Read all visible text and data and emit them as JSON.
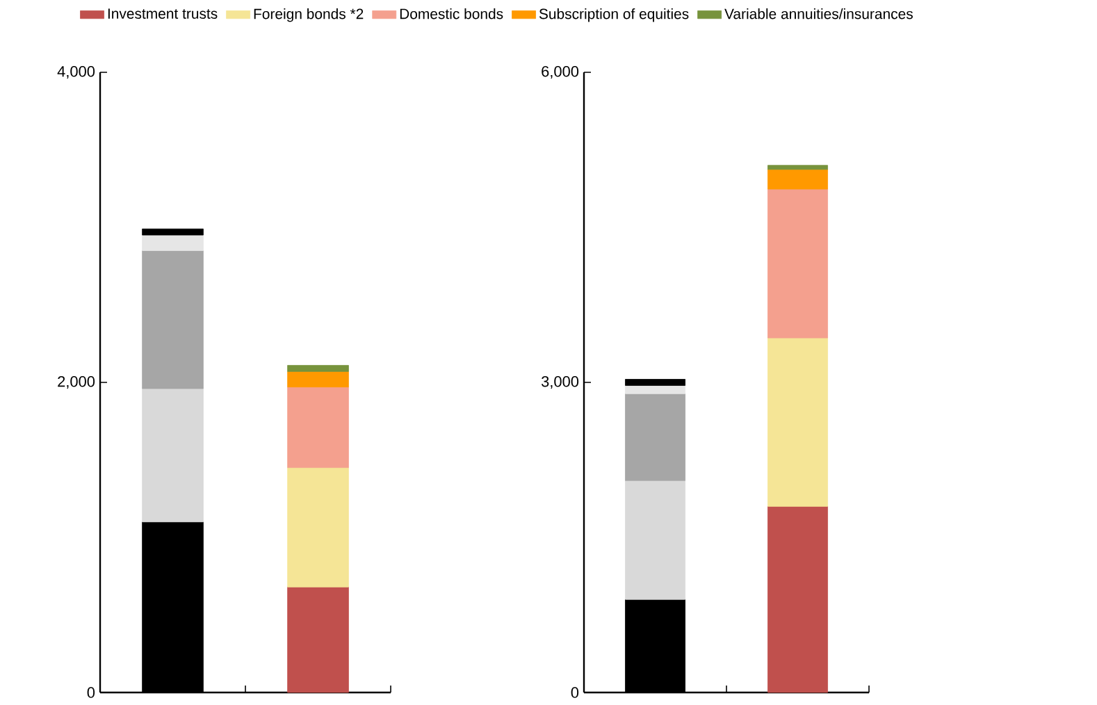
{
  "chart_data": [
    {
      "type": "bar",
      "stacked": true,
      "categories": [
        null,
        null
      ],
      "ylim": [
        0,
        4000
      ],
      "yticks": [
        0,
        {
          "value": 2000,
          "label": "2,000"
        },
        {
          "value": 4000,
          "label": "4,000"
        }
      ],
      "legend": "top",
      "series": [
        {
          "name": "Investment trusts",
          "color": "#c0504d",
          "colors": [
            "#000000",
            "#c0504d"
          ],
          "values": [
            1100,
            680
          ]
        },
        {
          "name": "Foreign bonds *2",
          "color": "#f5e596",
          "colors": [
            "#d9d9d9",
            "#f5e596"
          ],
          "values": [
            860,
            770
          ]
        },
        {
          "name": "Domestic bonds",
          "color": "#f4a08e",
          "colors": [
            "#a6a6a6",
            "#f4a08e"
          ],
          "values": [
            890,
            520
          ]
        },
        {
          "name": "Subscription of equities",
          "color": "#ff9900",
          "colors": [
            "#e6e6e6",
            "#ff9900"
          ],
          "values": [
            100,
            100
          ]
        },
        {
          "name": "Variable annuities/insurances",
          "color": "#77933c",
          "colors": [
            "#000000",
            "#77933c"
          ],
          "values": [
            40,
            40
          ]
        }
      ]
    },
    {
      "type": "bar",
      "stacked": true,
      "categories": [
        null,
        null
      ],
      "ylim": [
        0,
        6000
      ],
      "yticks": [
        0,
        {
          "value": 3000,
          "label": "3,000"
        },
        {
          "value": 6000,
          "label": "6,000"
        }
      ],
      "series": [
        {
          "colors": [
            "#000000",
            "#c0504d"
          ],
          "values": [
            900,
            1800
          ]
        },
        {
          "colors": [
            "#d9d9d9",
            "#f5e596"
          ],
          "values": [
            1150,
            1630
          ]
        },
        {
          "colors": [
            "#a6a6a6",
            "#f4a08e"
          ],
          "values": [
            840,
            1440
          ]
        },
        {
          "colors": [
            "#e6e6e6",
            "#ff9900"
          ],
          "values": [
            80,
            190
          ]
        },
        {
          "colors": [
            "#000000",
            "#77933c"
          ],
          "values": [
            60,
            40
          ]
        }
      ]
    }
  ]
}
